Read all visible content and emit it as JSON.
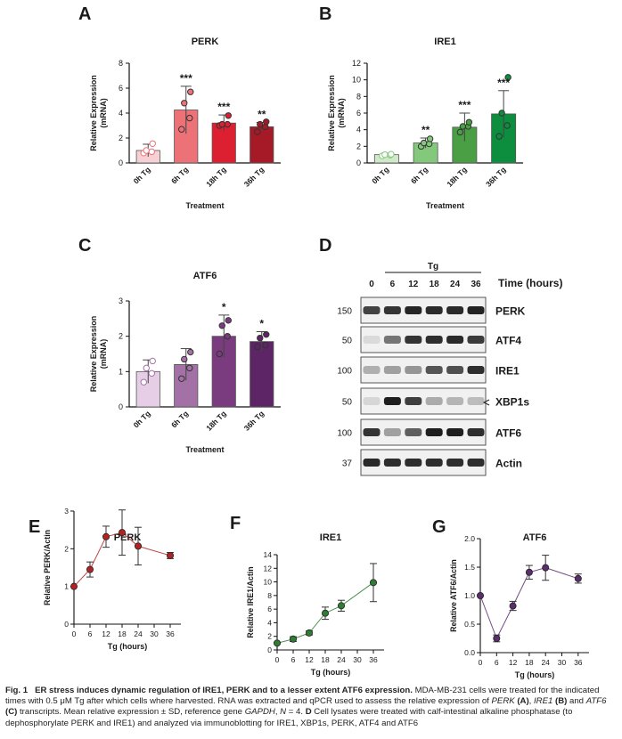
{
  "chart_data": [
    {
      "panel": "A",
      "type": "bar",
      "title": "PERK",
      "ylabel": "Relative  Expression (mRNA)",
      "xlabel": "Treatment",
      "categories": [
        "0h Tg",
        "6h Tg",
        "18h Tg",
        "36h Tg"
      ],
      "values": [
        1.0,
        4.25,
        3.2,
        2.9
      ],
      "sd": [
        0.5,
        1.9,
        0.65,
        0.35
      ],
      "points": [
        [
          0.8,
          0.9,
          1.0,
          1.55
        ],
        [
          2.7,
          3.6,
          4.8,
          5.7
        ],
        [
          3.0,
          3.1,
          3.1,
          3.8
        ],
        [
          2.5,
          2.9,
          3.1,
          3.3
        ]
      ],
      "significance": [
        "",
        "***",
        "***",
        "**"
      ],
      "ylim": [
        0,
        8
      ],
      "yticks": [
        0,
        2,
        4,
        6,
        8
      ],
      "colors": [
        "#f6d0d3",
        "#ec7278",
        "#dd2031",
        "#a61927"
      ]
    },
    {
      "panel": "B",
      "type": "bar",
      "title": "IRE1",
      "ylabel": "Relative Expression (mRNA)",
      "xlabel": "Treatment",
      "categories": [
        "0h Tg",
        "6h Tg",
        "18h Tg",
        "36h Tg"
      ],
      "values": [
        1.0,
        2.4,
        4.3,
        5.9
      ],
      "sd": [
        0.15,
        0.6,
        1.7,
        2.8
      ],
      "points": [
        [
          0.85,
          0.95,
          1.0,
          1.05
        ],
        [
          2.0,
          2.3,
          2.4,
          2.9
        ],
        [
          3.7,
          4.4,
          4.4,
          4.9
        ],
        [
          3.2,
          4.5,
          6.0,
          10.3
        ]
      ],
      "significance": [
        "",
        "**",
        "***",
        "***"
      ],
      "ylim": [
        0,
        12
      ],
      "yticks": [
        0,
        2,
        4,
        6,
        8,
        10,
        12
      ],
      "colors": [
        "#cfe9c9",
        "#84c87c",
        "#4a9f44",
        "#0d8e3e"
      ]
    },
    {
      "panel": "C",
      "type": "bar",
      "title": "ATF6",
      "ylabel": "Relative  Expression (mRNA)",
      "xlabel": "Treatment",
      "categories": [
        "0h Tg",
        "6h Tg",
        "18h Tg",
        "36h Tg"
      ],
      "values": [
        1.0,
        1.2,
        2.0,
        1.85
      ],
      "sd": [
        0.33,
        0.45,
        0.6,
        0.28
      ],
      "points": [
        [
          0.7,
          0.95,
          1.1,
          1.3
        ],
        [
          0.8,
          1.1,
          1.35,
          1.55
        ],
        [
          1.5,
          2.0,
          2.3,
          2.45
        ],
        [
          1.7,
          1.75,
          1.95,
          2.05
        ]
      ],
      "significance": [
        "",
        "",
        "*",
        "*"
      ],
      "ylim": [
        0,
        3
      ],
      "yticks": [
        0,
        1,
        2,
        3
      ],
      "colors": [
        "#e6cfe6",
        "#a371a6",
        "#7a3b7f",
        "#5d2466"
      ]
    },
    {
      "panel": "E",
      "type": "line",
      "title": "PERK",
      "ylabel": "Relative PERK/Actin",
      "xlabel": "Tg (hours)",
      "x": [
        0,
        6,
        12,
        18,
        24,
        36
      ],
      "y": [
        1.0,
        1.45,
        2.32,
        2.43,
        2.07,
        1.82
      ],
      "sd": [
        0.0,
        0.2,
        0.28,
        0.6,
        0.5,
        0.08
      ],
      "xlim": [
        0,
        40
      ],
      "xticks": [
        0,
        6,
        12,
        18,
        24,
        30,
        36
      ],
      "ylim": [
        0,
        3
      ],
      "yticks": [
        0,
        1,
        2,
        3
      ],
      "color": "#b22222"
    },
    {
      "panel": "F",
      "type": "line",
      "title": "IRE1",
      "ylabel": "Relative IRE1/Actin",
      "xlabel": "Tg (hours)",
      "x": [
        0,
        6,
        12,
        18,
        24,
        36
      ],
      "y": [
        1.0,
        1.6,
        2.5,
        5.4,
        6.5,
        9.9
      ],
      "sd": [
        0.0,
        0.35,
        0.3,
        0.9,
        0.8,
        2.8
      ],
      "xlim": [
        0,
        40
      ],
      "xticks": [
        0,
        6,
        12,
        18,
        24,
        30,
        36
      ],
      "ylim": [
        0,
        14
      ],
      "yticks": [
        0,
        2,
        4,
        6,
        8,
        10,
        12,
        14
      ],
      "color": "#2e7d32"
    },
    {
      "panel": "G",
      "type": "line",
      "title": "ATF6",
      "ylabel": "Relative ATF6/Actin",
      "xlabel": "Tg (hours)",
      "x": [
        0,
        6,
        12,
        18,
        24,
        36
      ],
      "y": [
        1.0,
        0.25,
        0.82,
        1.41,
        1.49,
        1.3
      ],
      "sd": [
        0.0,
        0.06,
        0.08,
        0.12,
        0.22,
        0.08
      ],
      "xlim": [
        0,
        40
      ],
      "xticks": [
        0,
        6,
        12,
        18,
        24,
        30,
        36
      ],
      "ylim": [
        0,
        2
      ],
      "yticks": [
        0.0,
        0.5,
        1.0,
        1.5,
        2.0
      ],
      "color": "#5a2d6d"
    }
  ],
  "western_blot": {
    "panel": "D",
    "group_label": "Tg",
    "time_label": "Time (hours)",
    "lanes": [
      "0",
      "6",
      "12",
      "18",
      "24",
      "36"
    ],
    "rows": [
      {
        "label": "PERK",
        "mw": "150",
        "intensity": [
          0.78,
          0.85,
          0.92,
          0.9,
          0.9,
          0.93
        ]
      },
      {
        "label": "ATF4",
        "mw": "50",
        "intensity": [
          0.08,
          0.55,
          0.85,
          0.88,
          0.9,
          0.82
        ]
      },
      {
        "label": "IRE1",
        "mw": "100",
        "intensity": [
          0.28,
          0.35,
          0.4,
          0.7,
          0.72,
          0.88
        ]
      },
      {
        "label": "XBP1s",
        "mw": "50",
        "intensity": [
          0.1,
          0.95,
          0.8,
          0.3,
          0.25,
          0.22
        ]
      },
      {
        "label": "ATF6",
        "mw": "100",
        "intensity": [
          0.85,
          0.35,
          0.65,
          0.95,
          0.95,
          0.88
        ]
      },
      {
        "label": "Actin",
        "mw": "37",
        "intensity": [
          0.9,
          0.88,
          0.88,
          0.88,
          0.88,
          0.88
        ]
      }
    ]
  },
  "caption": {
    "fig": "Fig. 1",
    "title": "ER stress induces dynamic regulation of IRE1, PERK and to a lesser extent ATF6 expression.",
    "t1": " MDA-MB-231 cells were treated for the indicated times with 0.5 μM Tg after which cells where harvested. RNA was extracted and qPCR used to assess the relative expression of ",
    "g_perk": "PERK",
    "pA": "(A)",
    "g_ire1": "IRE1",
    "pB": "(B)",
    "t_and": " and ",
    "g_atf6": "ATF6",
    "pC": "(C)",
    "t2": " transcripts. Mean relative expression ± SD, reference gene ",
    "g_gapdh": "GAPDH",
    "t3": ", ",
    "n": "N",
    "t4": " = 4. ",
    "pD": "D",
    "t5": " Cell lysates were treated with calf-intestinal alkaline phosphatase (to dephosphorylate PERK and IRE1) and analyzed via immunoblotting for IRE1, XBP1s, PERK, ATF4 and ATF6"
  }
}
